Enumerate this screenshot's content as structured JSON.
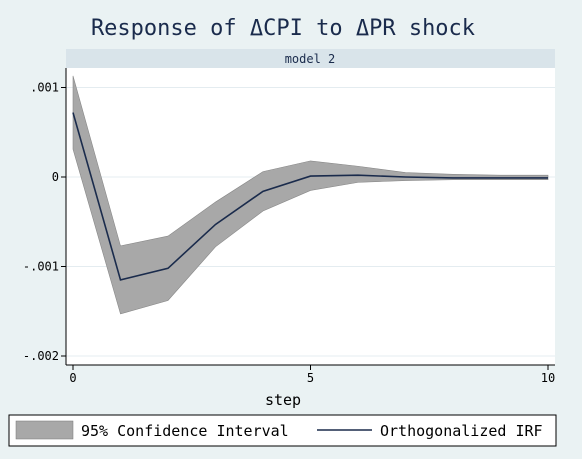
{
  "chart_data": {
    "type": "area",
    "title": "Response of ΔCPI to ΔPR shock",
    "subtitle": "model 2",
    "xlabel": "step",
    "ylabel": "",
    "xlim": [
      0,
      10
    ],
    "ylim": [
      -0.002,
      0.0012
    ],
    "x_ticks": [
      0,
      5,
      10
    ],
    "x_tick_labels": [
      "0",
      "5",
      "10"
    ],
    "y_ticks": [
      0.001,
      0,
      -0.001,
      -0.002
    ],
    "y_tick_labels": [
      ".001",
      "0",
      "-.001",
      "-.002"
    ],
    "grid": true,
    "legend": [
      "95% Confidence Interval",
      "Orthogonalized IRF"
    ],
    "legend_position": "bottom",
    "x": [
      0,
      1,
      2,
      3,
      4,
      5,
      6,
      7,
      8,
      9,
      10
    ],
    "series": [
      {
        "name": "Orthogonalized IRF",
        "kind": "line",
        "values": [
          0.00072,
          -0.00115,
          -0.00102,
          -0.00053,
          -0.00016,
          1e-05,
          2e-05,
          0.0,
          -1e-05,
          -1e-05,
          -1e-05
        ]
      },
      {
        "name": "95% Confidence Interval",
        "kind": "band",
        "upper": [
          0.00113,
          -0.00077,
          -0.00066,
          -0.00028,
          6e-05,
          0.00018,
          0.00012,
          5e-05,
          3e-05,
          2e-05,
          2e-05
        ],
        "lower": [
          0.00031,
          -0.00153,
          -0.00138,
          -0.00078,
          -0.00038,
          -0.00015,
          -6e-05,
          -4e-05,
          -3e-05,
          -3e-05,
          -3e-05
        ]
      }
    ],
    "colors": {
      "background": "#eaf2f3",
      "plot_area": "#ffffff",
      "band": "#a8a8a8",
      "line": "#1a2b4c",
      "title": "#1a2b4c",
      "strip": "#d9e4ea",
      "grid": "#e4ecf0"
    }
  }
}
